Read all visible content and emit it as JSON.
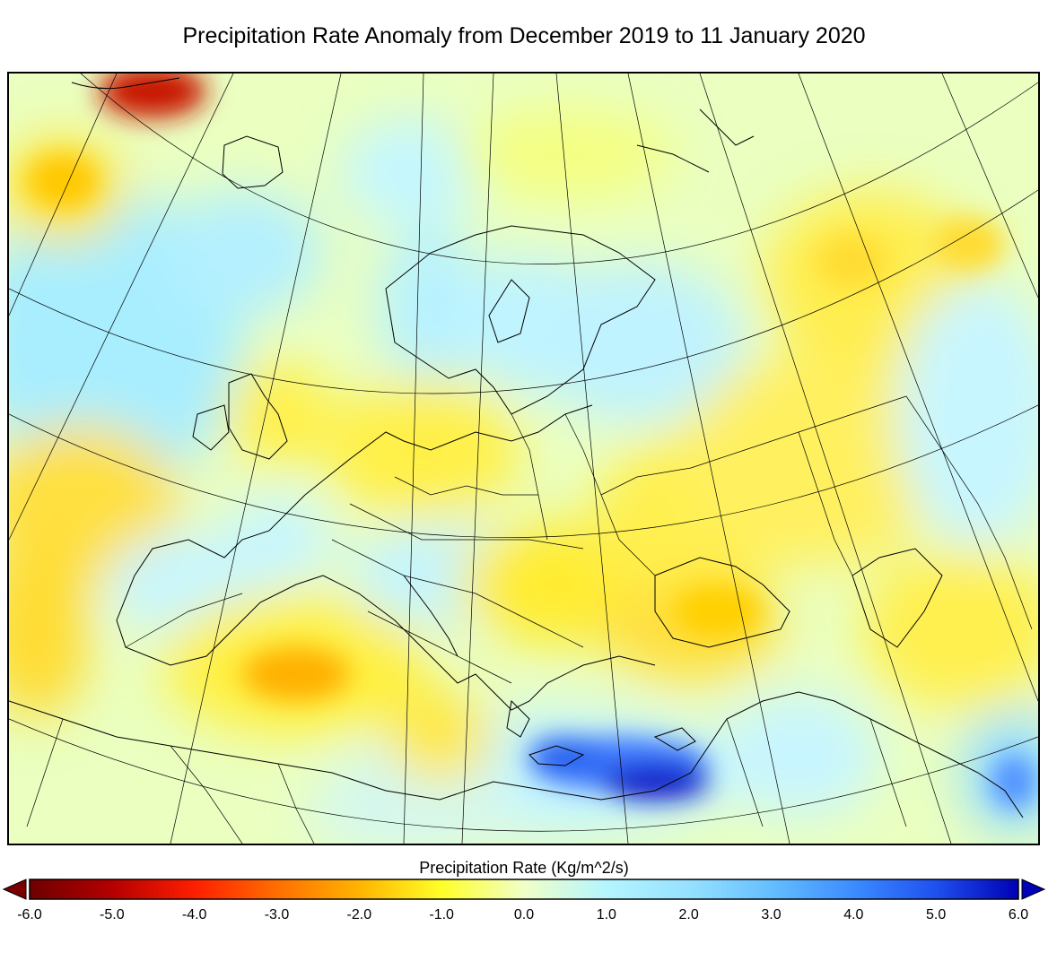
{
  "title": "Precipitation Rate Anomaly from December 2019 to 11 January 2020",
  "colorbar": {
    "label": "Precipitation Rate (Kg/m^2/s)",
    "min": -6.0,
    "max": 6.0,
    "ticks": [
      "-6.0",
      "-5.0",
      "-4.0",
      "-3.0",
      "-2.0",
      "-1.0",
      "0.0",
      "1.0",
      "2.0",
      "3.0",
      "4.0",
      "5.0",
      "6.0"
    ],
    "under_color": "#7a0000",
    "over_color": "#0000b4",
    "stops": [
      {
        "value": -6.0,
        "color": "#6e0000"
      },
      {
        "value": -5.0,
        "color": "#b40000"
      },
      {
        "value": -4.0,
        "color": "#ff1e00"
      },
      {
        "value": -3.0,
        "color": "#ff6e00"
      },
      {
        "value": -2.0,
        "color": "#ffb400"
      },
      {
        "value": -1.0,
        "color": "#ffff28"
      },
      {
        "value": 0.0,
        "color": "#f0ffc8"
      },
      {
        "value": 1.0,
        "color": "#b4f5ff"
      },
      {
        "value": 2.0,
        "color": "#96e1ff"
      },
      {
        "value": 3.0,
        "color": "#64beff"
      },
      {
        "value": 4.0,
        "color": "#3c8cff"
      },
      {
        "value": 5.0,
        "color": "#1e50f0"
      },
      {
        "value": 6.0,
        "color": "#0000b4"
      }
    ]
  },
  "map": {
    "projection": "conic",
    "region": "Europe",
    "graticule": true,
    "coastlines": true,
    "country_borders": true,
    "colors": {
      "background": "#e6ffb4",
      "coastline": "#000000"
    }
  }
}
